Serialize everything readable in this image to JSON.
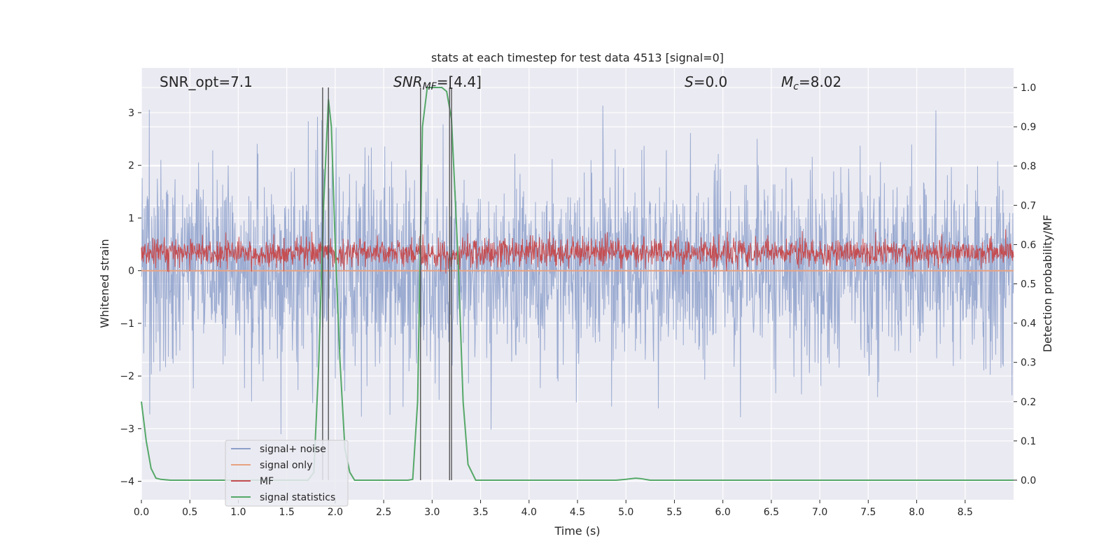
{
  "chart_data": {
    "type": "line",
    "title": "stats at each timestep for test data 4513 [signal=0]",
    "xlabel": "Time (s)",
    "ylabel": "Whitened strain",
    "y2label": "Detection probability/MF",
    "xlim": [
      0,
      9
    ],
    "ylim": [
      -4.35,
      3.85
    ],
    "y2lim": [
      -0.05,
      1.05
    ],
    "x_ticks": [
      "0.0",
      "0.5",
      "1.0",
      "1.5",
      "2.0",
      "2.5",
      "3.0",
      "3.5",
      "4.0",
      "4.5",
      "5.0",
      "5.5",
      "6.0",
      "6.5",
      "7.0",
      "7.5",
      "8.0",
      "8.5"
    ],
    "y_ticks": [
      "3",
      "2",
      "1",
      "0",
      "−1",
      "−2",
      "−3",
      "−4"
    ],
    "y2_ticks": [
      "1.0",
      "0.9",
      "0.8",
      "0.7",
      "0.6",
      "0.5",
      "0.4",
      "0.3",
      "0.2",
      "0.1",
      "0.0"
    ],
    "grid": true,
    "legend_position": "lower-left",
    "annotations": {
      "snr_opt": "SNR_opt=7.1",
      "snr_mf_label": "SNR",
      "snr_mf_sub": "MF",
      "snr_mf_value": "=[4.4]",
      "s_label": "S",
      "s_value": "=0.0",
      "mc_label": "M",
      "mc_sub": "c",
      "mc_value": "=8.02"
    },
    "vlines_x": [
      1.87,
      1.93,
      2.88,
      3.18,
      3.2
    ],
    "series": [
      {
        "name": "signal+ noise",
        "color": "#8da0cb",
        "kind": "noise",
        "center": 0.0,
        "spread": 2.6,
        "peak": 3.3
      },
      {
        "name": "signal only",
        "color": "#e8a282",
        "kind": "flat",
        "value": 0.0
      },
      {
        "name": "MF",
        "color": "#c44e52",
        "kind": "noise",
        "axis": "y2",
        "center": 0.58,
        "spread": 0.05,
        "peak": 0.67
      },
      {
        "name": "signal statistics",
        "color": "#55a868",
        "axis": "y2",
        "x": [
          0.0,
          0.05,
          0.1,
          0.15,
          0.2,
          0.3,
          0.5,
          1.0,
          1.5,
          1.72,
          1.78,
          1.83,
          1.88,
          1.93,
          1.96,
          2.0,
          2.05,
          2.1,
          2.15,
          2.2,
          2.5,
          2.75,
          2.8,
          2.85,
          2.9,
          2.95,
          3.0,
          3.1,
          3.15,
          3.2,
          3.27,
          3.32,
          3.37,
          3.45,
          3.6,
          4.0,
          4.5,
          4.9,
          5.0,
          5.1,
          5.15,
          5.25,
          5.4,
          6.0,
          7.0,
          8.0,
          8.5,
          9.0
        ],
        "y": [
          0.2,
          0.1,
          0.03,
          0.005,
          0.002,
          0.0,
          0.0,
          0.0,
          0.0,
          0.0,
          0.02,
          0.3,
          0.7,
          0.97,
          0.9,
          0.6,
          0.3,
          0.08,
          0.02,
          0.0,
          0.0,
          0.0,
          0.002,
          0.2,
          0.9,
          1.0,
          1.0,
          1.0,
          0.99,
          0.92,
          0.55,
          0.2,
          0.04,
          0.0,
          0.0,
          0.0,
          0.0,
          0.0,
          0.002,
          0.005,
          0.004,
          0.0,
          0.0,
          0.0,
          0.0,
          0.0,
          0.0,
          0.0
        ]
      }
    ]
  },
  "colors": {
    "plot_bg": "#eaeaf2",
    "grid": "#ffffff",
    "vline": "#555555",
    "text": "#262626"
  }
}
